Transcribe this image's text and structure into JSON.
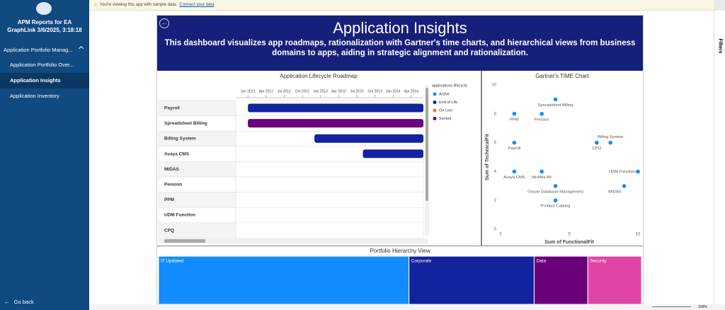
{
  "notice": {
    "text": "You're viewing this app with sample data.",
    "link": "Connect your data"
  },
  "sidebar": {
    "title_lines": [
      "APM Reports for EA",
      "GraphLink 3/6/2025, 3:18:18"
    ],
    "nav": [
      "Application Portfolio Manag...",
      "Application Portfolio Over...",
      "Application Insights",
      "Application Inventory"
    ],
    "back": "Go back"
  },
  "filters": "Filters",
  "zoom": "100%",
  "banner": {
    "title": "Application Insights",
    "description": "This dashboard visualizes app roadmaps, rationalization with Gartner's time charts, and hierarchical views from business domains to apps, aiding in strategic alignment and rationalization."
  },
  "chart_data": [
    {
      "type": "gantt",
      "title": "Application Lifecycle Roadmap",
      "legend_title": "applications.lifecycle",
      "categories": [
        "Payroll",
        "Spreadsheet Billing",
        "Billing System",
        "Avaya CMS",
        "MIDAS",
        "Pension",
        "PPM",
        "UDM Function",
        "CPQ"
      ],
      "xlim": [
        "2011-11",
        "2014-06"
      ],
      "xticks": [
        {
          "value": "2012-01",
          "label": "Jan 2012"
        },
        {
          "value": "2012-04",
          "label": "Apr 2012"
        },
        {
          "value": "2012-07",
          "label": "Jul 2012"
        },
        {
          "value": "2012-10",
          "label": "Oct 2012"
        },
        {
          "value": "2013-01",
          "label": "Jan 2013"
        },
        {
          "value": "2013-04",
          "label": "Apr 2013"
        },
        {
          "value": "2013-07",
          "label": "Jul 2013"
        },
        {
          "value": "2013-10",
          "label": "Oct 2013"
        },
        {
          "value": "2014-01",
          "label": "Jan 2014"
        },
        {
          "value": "2014-04",
          "label": "Apr 2014"
        }
      ],
      "series": [
        {
          "name": "Active",
          "color": "#118dff",
          "start": [
            null,
            null,
            null,
            null,
            null,
            null,
            null,
            null,
            null
          ],
          "end": [
            null,
            null,
            null,
            null,
            null,
            null,
            null,
            null,
            null
          ]
        },
        {
          "name": "End of Life",
          "color": "#12239e",
          "start": [
            "2012-01",
            null,
            "2012-12",
            "2013-08",
            null,
            null,
            null,
            null,
            null
          ],
          "end": [
            "2014-06",
            null,
            "2014-06",
            "2014-06",
            null,
            null,
            null,
            null,
            null
          ]
        },
        {
          "name": "Go Live",
          "color": "#e66c37",
          "start": [
            null,
            null,
            null,
            null,
            null,
            null,
            null,
            null,
            null
          ],
          "end": [
            null,
            null,
            null,
            null,
            null,
            null,
            null,
            null,
            null
          ]
        },
        {
          "name": "Sunset",
          "color": "#6b007b",
          "start": [
            null,
            "2012-01",
            null,
            null,
            null,
            null,
            null,
            null,
            null
          ],
          "end": [
            null,
            "2014-06",
            null,
            null,
            null,
            null,
            null,
            null,
            null
          ]
        }
      ]
    },
    {
      "type": "scatter",
      "title": "Gartner's TIME Chart",
      "x_label": "Sum of FunctionalFit",
      "y_label": "Sum of TechnicalFit",
      "color": "#118dff",
      "point_labels": [
        "Spreadsheet Billing",
        "PPM",
        "Pension",
        "Payroll",
        "Billing System",
        "CPQ",
        "Avaya CMS",
        "McAfee AV",
        "UDM Function",
        "MIDAS",
        "Oracle Database Management",
        "Product Catalog"
      ],
      "x": [
        4,
        1,
        3,
        1,
        8,
        7,
        1,
        3,
        10,
        9,
        4,
        4
      ],
      "values": [
        9,
        8,
        8,
        6,
        6,
        6,
        4,
        4,
        4,
        3,
        3,
        2
      ],
      "xlim": [
        0,
        10
      ],
      "xticks": [
        0,
        5,
        10
      ],
      "ylim": [
        0,
        10
      ],
      "yticks": [
        0,
        2,
        4,
        6,
        8,
        10
      ]
    },
    {
      "type": "treemap",
      "title": "Portfolio Hierarchy View",
      "categories": [
        "IT Updated",
        "Corporate",
        "Data",
        "Security"
      ],
      "values": [
        14,
        7,
        3,
        3
      ],
      "colors": [
        "#118dff",
        "#12239e",
        "#6b007b",
        "#e044a7"
      ]
    }
  ]
}
